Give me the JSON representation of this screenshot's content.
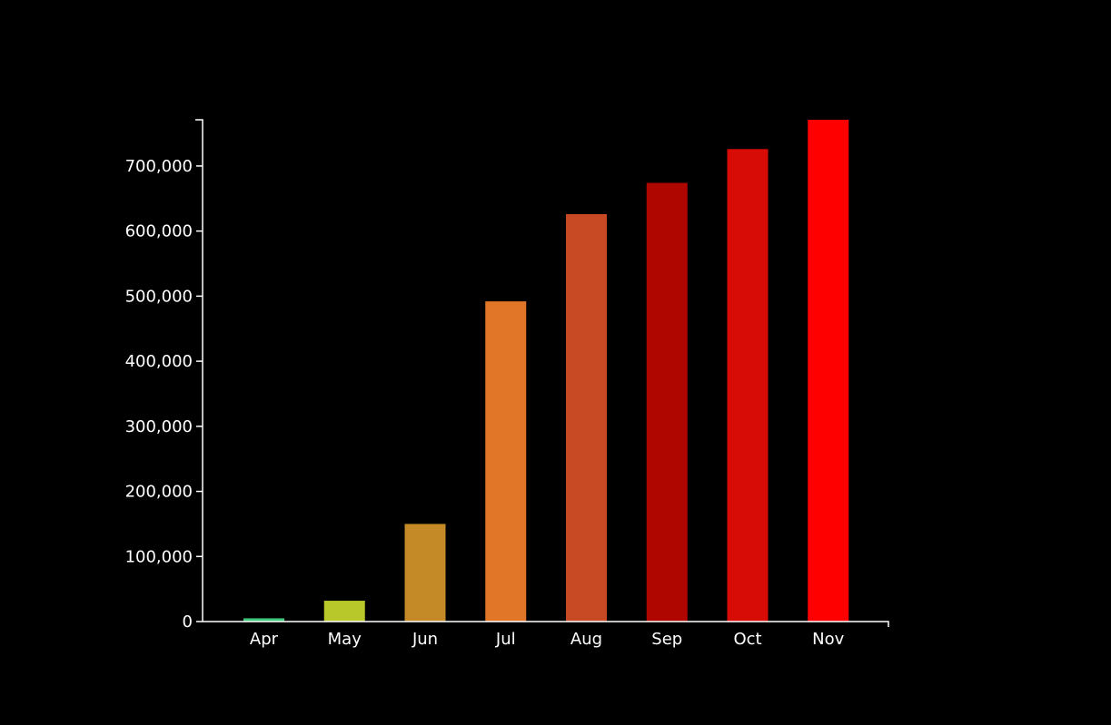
{
  "chart_data": {
    "type": "bar",
    "title": "",
    "xlabel": "",
    "ylabel": "",
    "categories": [
      "Apr",
      "May",
      "Jun",
      "Jul",
      "Aug",
      "Sep",
      "Oct",
      "Nov"
    ],
    "values": [
      5000,
      32000,
      150000,
      492000,
      626000,
      674000,
      726000,
      771000
    ],
    "colors": [
      "#3cc878",
      "#b8c82a",
      "#c48a28",
      "#e27628",
      "#c84a24",
      "#b00600",
      "#d80c06",
      "#ff0000"
    ],
    "ylim": [
      0,
      771000
    ],
    "yticks": [
      0,
      100000,
      200000,
      300000,
      400000,
      500000,
      600000,
      700000
    ],
    "ytick_labels": [
      "0",
      "100,000",
      "200,000",
      "300,000",
      "400,000",
      "500,000",
      "600,000",
      "700,000"
    ],
    "grid": false,
    "legend": "none"
  }
}
